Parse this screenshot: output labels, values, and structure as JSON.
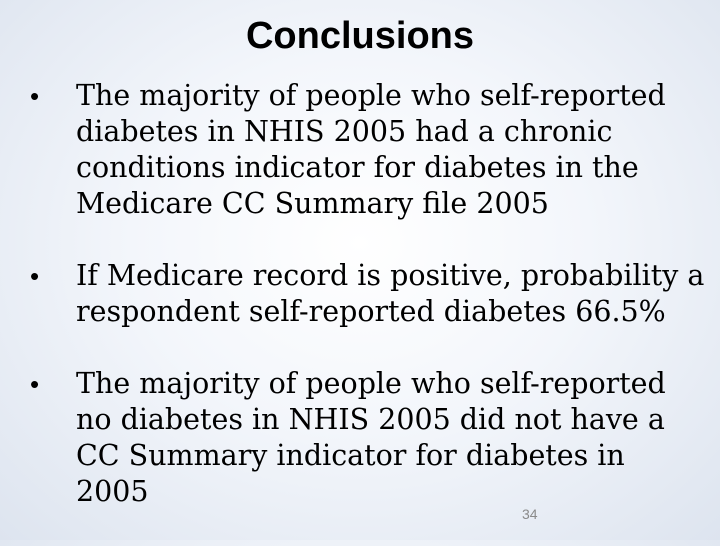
{
  "slide": {
    "title": "Conclusions",
    "bullets": [
      {
        "lines": [
          "The majority of people who self-reported",
          "diabetes in NHIS 2005 had a chronic",
          "conditions indicator for diabetes in the",
          "Medicare CC Summary file 2005"
        ]
      },
      {
        "lines": [
          "If Medicare record is positive, probability a",
          "respondent self-reported diabetes 66.5%"
        ]
      },
      {
        "lines": [
          "The majority of people who self-reported",
          "no diabetes in NHIS 2005 did not have a",
          "CC Summary indicator for diabetes in",
          "2005"
        ]
      }
    ],
    "slide_number": "34"
  }
}
